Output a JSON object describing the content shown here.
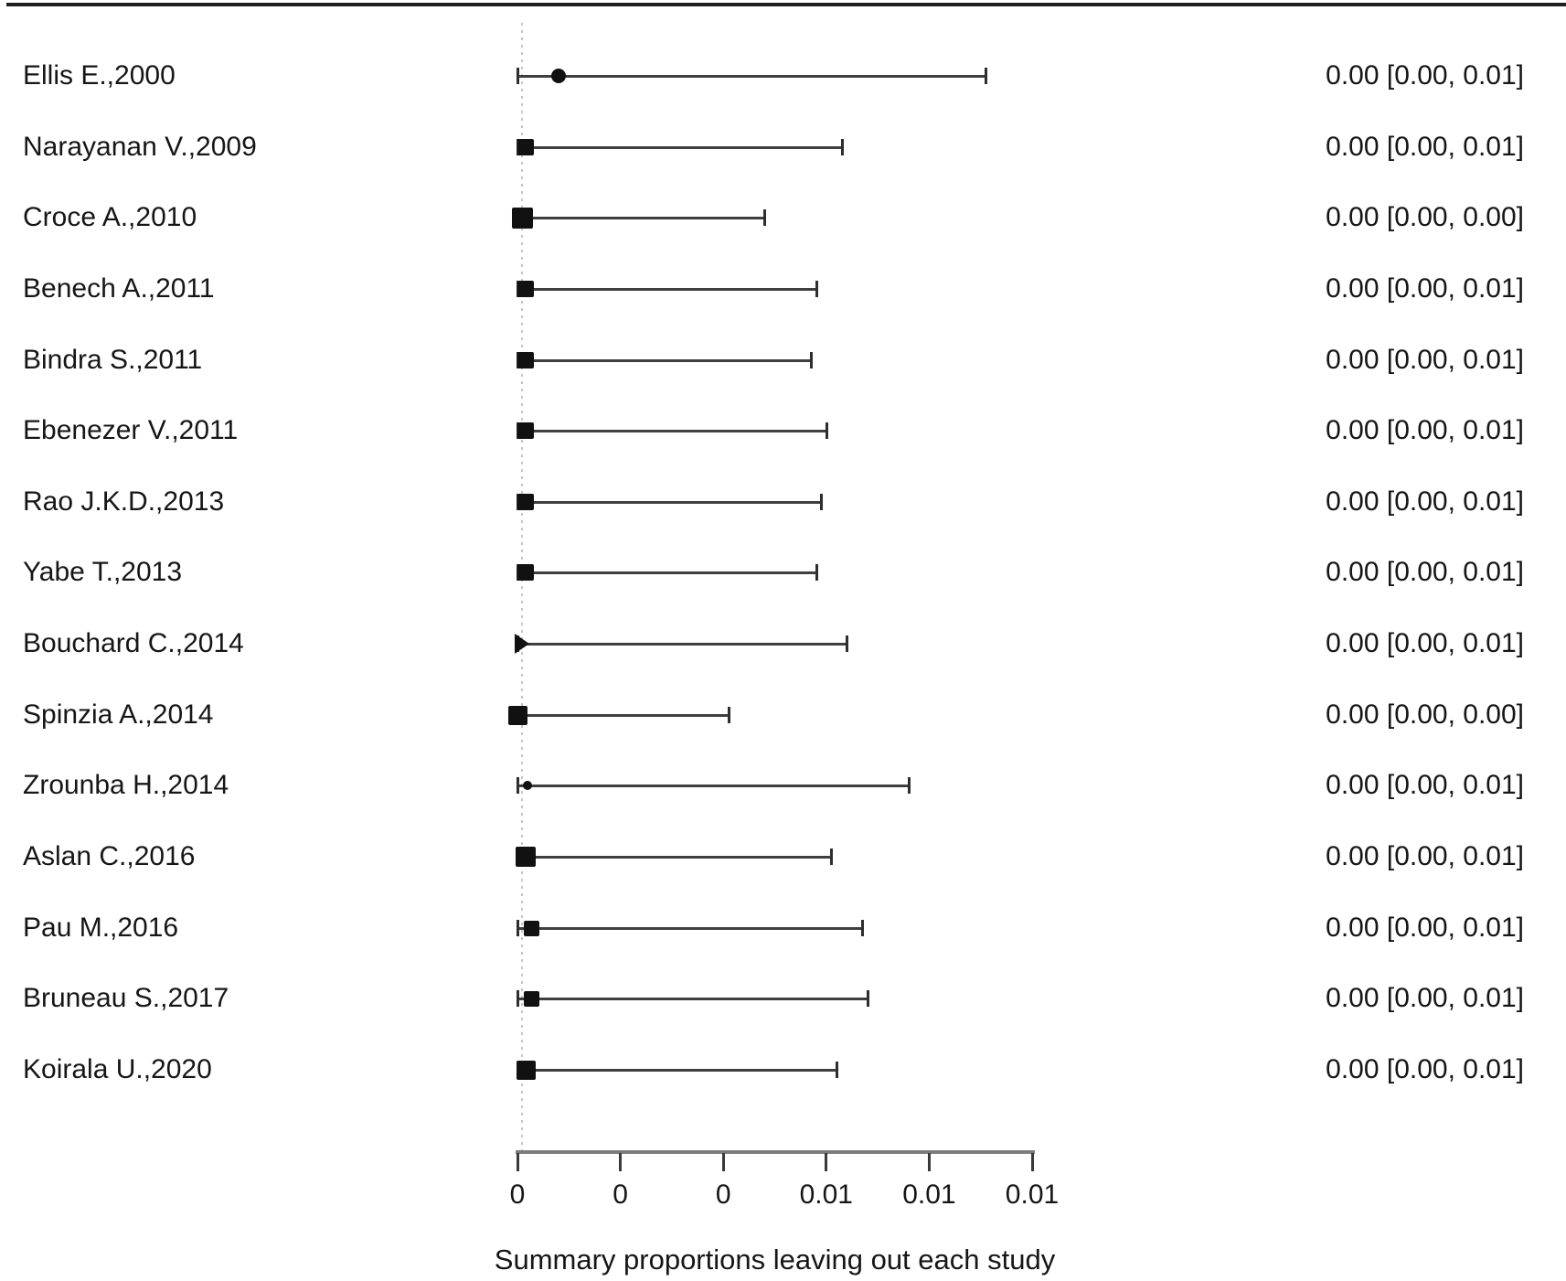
{
  "chart_data": {
    "type": "forest",
    "title": "",
    "xlabel": "Summary proportions leaving out each study",
    "x_axis": {
      "min": 0,
      "max": 0.01,
      "ticks": [
        {
          "value": 0.0,
          "label": "0"
        },
        {
          "value": 0.002,
          "label": "0"
        },
        {
          "value": 0.004,
          "label": "0"
        },
        {
          "value": 0.006,
          "label": "0.01"
        },
        {
          "value": 0.008,
          "label": "0.01"
        },
        {
          "value": 0.01,
          "label": "0.01"
        }
      ]
    },
    "studies": [
      {
        "label": "Ellis E.,2000",
        "estimate": 0.0008,
        "ci_low": 0.0,
        "ci_high": 0.0091,
        "display": "0.00 [0.00, 0.01]",
        "marker": "circle",
        "marker_size": 16
      },
      {
        "label": "Narayanan V.,2009",
        "estimate": 0.00016,
        "ci_low": 0.0,
        "ci_high": 0.0063,
        "display": "0.00 [0.00, 0.01]",
        "marker": "square",
        "marker_size": 18
      },
      {
        "label": "Croce A.,2010",
        "estimate": 0.0001,
        "ci_low": 0.0,
        "ci_high": 0.0048,
        "display": "0.00 [0.00, 0.00]",
        "marker": "square",
        "marker_size": 23
      },
      {
        "label": "Benech A.,2011",
        "estimate": 0.00016,
        "ci_low": 0.0,
        "ci_high": 0.0058,
        "display": "0.00 [0.00, 0.01]",
        "marker": "square",
        "marker_size": 18
      },
      {
        "label": "Bindra S.,2011",
        "estimate": 0.00016,
        "ci_low": 0.0,
        "ci_high": 0.0057,
        "display": "0.00 [0.00, 0.01]",
        "marker": "square",
        "marker_size": 18
      },
      {
        "label": "Ebenezer V.,2011",
        "estimate": 0.00016,
        "ci_low": 0.0,
        "ci_high": 0.006,
        "display": "0.00 [0.00, 0.01]",
        "marker": "square",
        "marker_size": 18
      },
      {
        "label": "Rao J.K.D.,2013",
        "estimate": 0.00016,
        "ci_low": 0.0,
        "ci_high": 0.0059,
        "display": "0.00 [0.00, 0.01]",
        "marker": "square",
        "marker_size": 18
      },
      {
        "label": "Yabe T.,2013",
        "estimate": 0.00016,
        "ci_low": 0.0,
        "ci_high": 0.0058,
        "display": "0.00 [0.00, 0.01]",
        "marker": "square",
        "marker_size": 18
      },
      {
        "label": "Bouchard C.,2014",
        "estimate": 0.0002,
        "ci_low": 0.0,
        "ci_high": 0.0064,
        "display": "0.00 [0.00, 0.01]",
        "marker": "triangle",
        "marker_size": 22
      },
      {
        "label": "Spinzia A.,2014",
        "estimate": 0.0,
        "ci_low": 0.0,
        "ci_high": 0.0041,
        "display": "0.00 [0.00, 0.00]",
        "marker": "square",
        "marker_size": 21
      },
      {
        "label": "Zrounba H.,2014",
        "estimate": 0.0002,
        "ci_low": 0.0,
        "ci_high": 0.0076,
        "display": "0.00 [0.00, 0.01]",
        "marker": "dot",
        "marker_size": 10
      },
      {
        "label": "Aslan C.,2016",
        "estimate": 0.00016,
        "ci_low": 0.0,
        "ci_high": 0.0061,
        "display": "0.00 [0.00, 0.01]",
        "marker": "square",
        "marker_size": 22
      },
      {
        "label": "Pau M.,2016",
        "estimate": 0.00027,
        "ci_low": 0.0,
        "ci_high": 0.0067,
        "display": "0.00 [0.00, 0.01]",
        "marker": "square",
        "marker_size": 17
      },
      {
        "label": "Bruneau S.,2017",
        "estimate": 0.00028,
        "ci_low": 0.0,
        "ci_high": 0.0068,
        "display": "0.00 [0.00, 0.01]",
        "marker": "square",
        "marker_size": 17
      },
      {
        "label": "Koirala U.,2020",
        "estimate": 0.00016,
        "ci_low": 0.0,
        "ci_high": 0.0062,
        "display": "0.00 [0.00, 0.01]",
        "marker": "square",
        "marker_size": 21
      }
    ]
  },
  "colors": {
    "marker": "#111111",
    "ci_line": "#3f3f3f",
    "cap": "#2e2e2e",
    "axis": "#7d7d7d",
    "tick": "#3a3a3a",
    "text": "#161616",
    "zero_line": "#c4c4c4",
    "top_border": "#1f1f1f"
  }
}
